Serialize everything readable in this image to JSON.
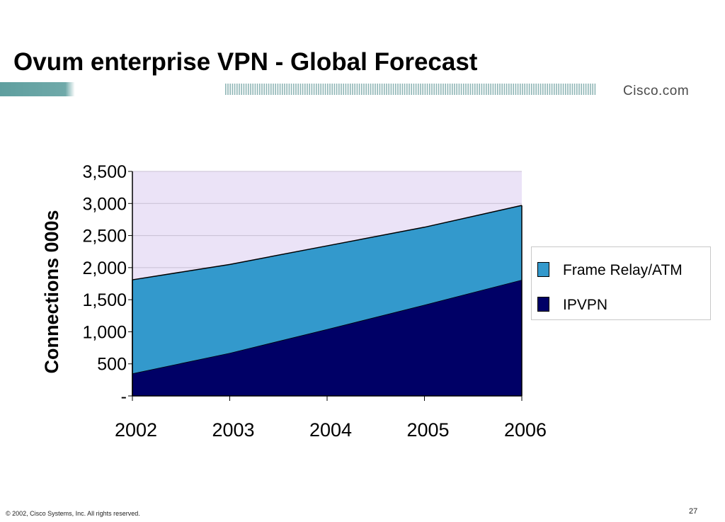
{
  "slide": {
    "title": "Ovum enterprise VPN - Global Forecast",
    "brand": "Cisco.com",
    "copyright": "© 2002, Cisco Systems, Inc. All rights reserved.",
    "page_number": "27"
  },
  "colors": {
    "plot_background": "#ebe3f7",
    "frame_relay": "#3399cc",
    "ipvpn": "#000066",
    "banner_teal": "#5f9f9f"
  },
  "chart_data": {
    "type": "area",
    "stacked": true,
    "title": "",
    "xlabel": "",
    "ylabel": "Connections 000s",
    "categories": [
      "2002",
      "2003",
      "2004",
      "2005",
      "2006"
    ],
    "ylim": [
      0,
      3500
    ],
    "yticks": [
      0,
      500,
      1000,
      1500,
      2000,
      2500,
      3000,
      3500
    ],
    "ytick_labels": [
      "-",
      "500",
      "1,000",
      "1,500",
      "2,000",
      "2,500",
      "3,000",
      "3,500"
    ],
    "grid": true,
    "legend_position": "right",
    "series": [
      {
        "name": "IPVPN",
        "values": [
          350,
          670,
          1040,
          1420,
          1810
        ],
        "color": "#000066"
      },
      {
        "name": "Frame Relay/ATM",
        "values": [
          1460,
          1380,
          1300,
          1210,
          1160
        ],
        "color": "#3399cc"
      }
    ],
    "legend_order": [
      "Frame Relay/ATM",
      "IPVPN"
    ]
  }
}
